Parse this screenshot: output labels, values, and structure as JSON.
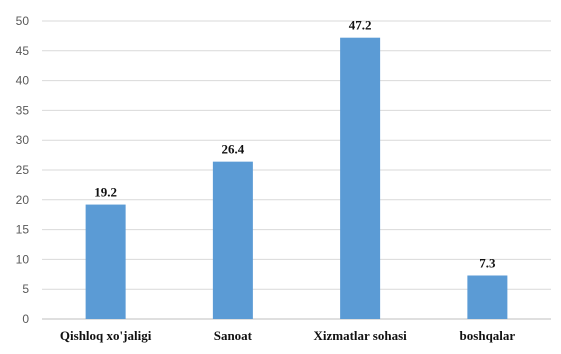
{
  "chart_data": {
    "type": "bar",
    "categories": [
      "Qishloq xo'jaligi",
      "Sanoat",
      "Xizmatlar sohasi",
      "boshqalar"
    ],
    "values": [
      19.2,
      26.4,
      47.2,
      7.3
    ],
    "data_labels": [
      "19.2",
      "26.4",
      "47.2",
      "7.3"
    ],
    "title": "",
    "xlabel": "",
    "ylabel": "",
    "ylim": [
      0,
      50
    ],
    "yticks": [
      "0",
      "5",
      "10",
      "15",
      "20",
      "25",
      "30",
      "35",
      "40",
      "45",
      "50"
    ],
    "grid": true,
    "legend": "none",
    "colors": {
      "bar": "#5b9bd5",
      "grid": "#d9d9d9",
      "axis": "#bfbfbf"
    }
  }
}
